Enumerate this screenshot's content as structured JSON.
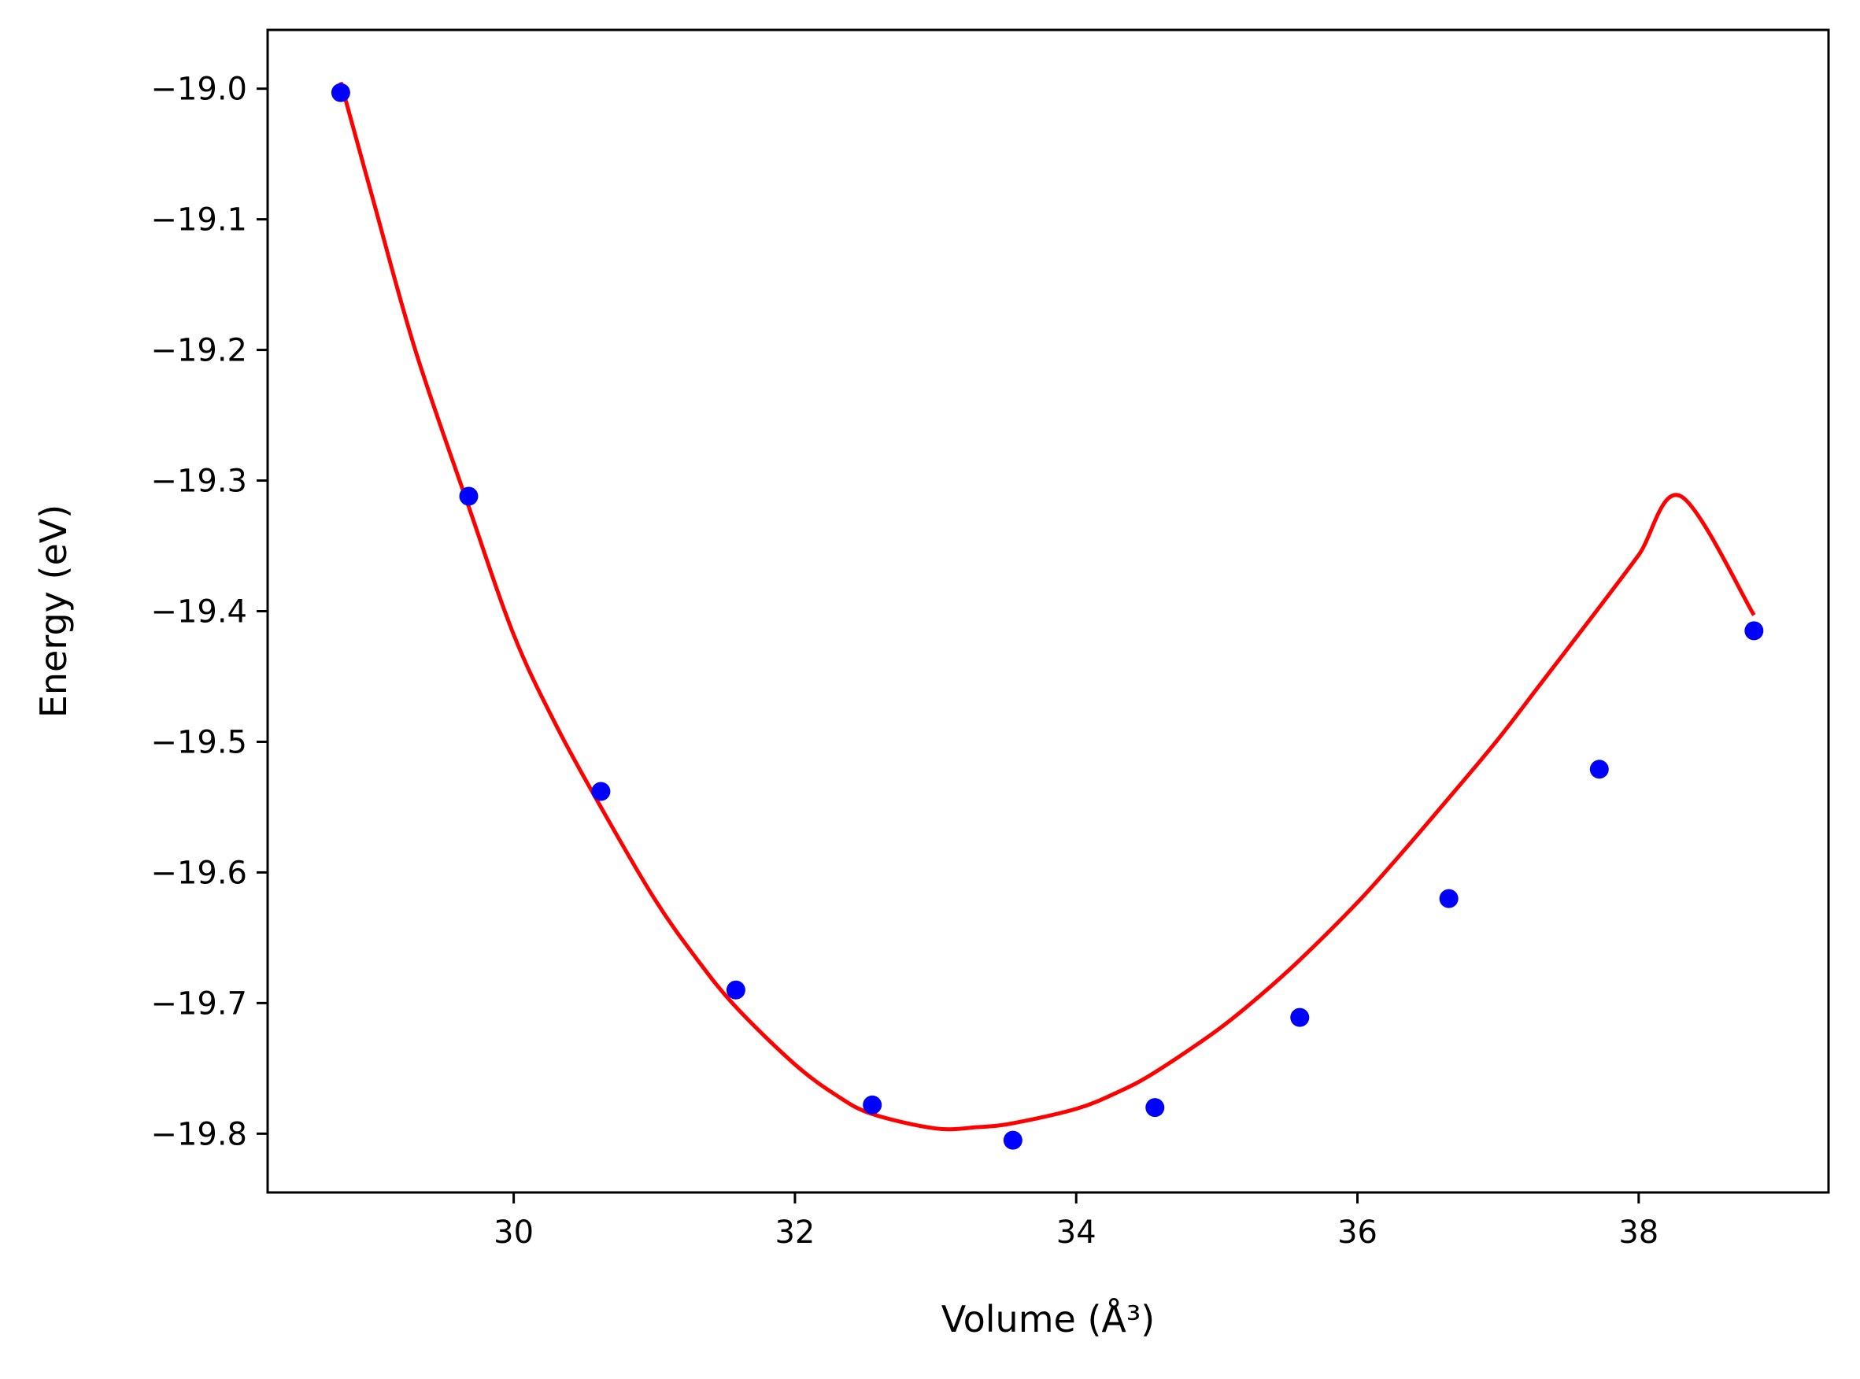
{
  "chart_data": {
    "type": "scatter",
    "title": "",
    "xlabel": "Volume (Å³)",
    "ylabel": "Energy (eV)",
    "xlim": [
      28.25,
      39.35
    ],
    "ylim": [
      -19.845,
      -18.955
    ],
    "xticks": [
      30,
      32,
      34,
      36,
      38
    ],
    "xtick_labels": [
      "30",
      "32",
      "34",
      "36",
      "38"
    ],
    "yticks": [
      -19.0,
      -19.1,
      -19.2,
      -19.3,
      -19.4,
      -19.5,
      -19.6,
      -19.7,
      -19.8
    ],
    "ytick_labels": [
      "−19.0",
      "−19.1",
      "−19.2",
      "−19.3",
      "−19.4",
      "−19.5",
      "−19.6",
      "−19.7",
      "−19.8"
    ],
    "grid": false,
    "series": [
      {
        "kind": "points",
        "color": "#0000ff",
        "x": [
          28.77,
          29.68,
          30.62,
          31.58,
          32.55,
          33.55,
          34.56,
          35.59,
          36.65,
          37.72,
          38.82
        ],
        "y": [
          -19.003,
          -19.312,
          -19.538,
          -19.69,
          -19.778,
          -19.805,
          -19.78,
          -19.711,
          -19.62,
          -19.521,
          -19.415
        ]
      },
      {
        "kind": "fit-curve",
        "color": "#ff0000",
        "x": [
          28.77,
          29.0,
          29.3,
          29.68,
          30.0,
          30.3,
          30.62,
          31.0,
          31.3,
          31.58,
          32.0,
          32.3,
          32.55,
          33.0,
          33.3,
          33.55,
          34.0,
          34.3,
          34.56,
          35.0,
          35.3,
          35.59,
          36.0,
          36.3,
          36.65,
          37.0,
          37.3,
          37.72,
          38.0,
          38.3,
          38.82
        ],
        "y": [
          -18.995,
          -19.085,
          -19.2,
          -19.32,
          -19.418,
          -19.487,
          -19.55,
          -19.62,
          -19.666,
          -19.703,
          -19.747,
          -19.771,
          -19.785,
          -19.796,
          -19.795,
          -19.792,
          -19.781,
          -19.768,
          -19.753,
          -19.721,
          -19.695,
          -19.667,
          -19.623,
          -19.587,
          -19.543,
          -19.498,
          -19.456,
          -19.397,
          -19.357,
          -19.312,
          -19.403
        ]
      }
    ]
  }
}
